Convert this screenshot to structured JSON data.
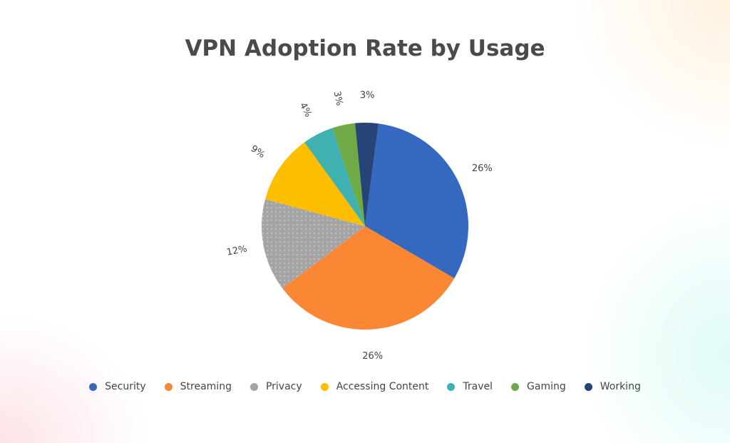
{
  "chart_data": {
    "type": "pie",
    "title": "VPN Adoption Rate by Usage",
    "categories": [
      "Security",
      "Streaming",
      "Privacy",
      "Accessing Content",
      "Travel",
      "Gaming",
      "Working"
    ],
    "values": [
      26,
      26,
      12,
      9,
      4,
      3,
      3
    ],
    "data_labels": [
      "26%",
      "26%",
      "12%",
      "9%",
      "4%",
      "3%",
      "3%"
    ],
    "colors": [
      "#3569c0",
      "#fb8734",
      "#a4a4a4",
      "#fdbe00",
      "#3eb1b0",
      "#6eab46",
      "#264478"
    ],
    "legend_position": "bottom",
    "direction": "clockwise"
  }
}
